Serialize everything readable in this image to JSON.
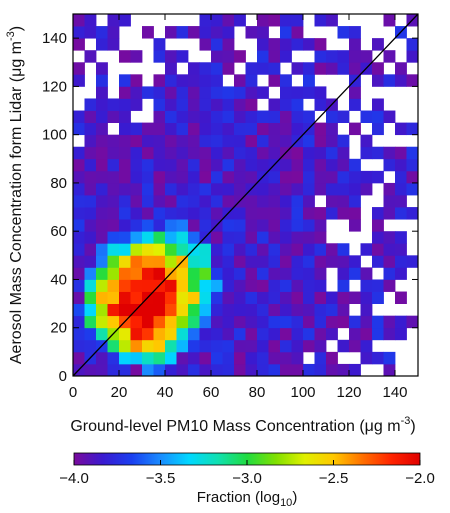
{
  "chart_data": {
    "type": "heatmap",
    "title": "",
    "xlabel": "Ground-level PM10 Mass Concentration (μg m⁻³)",
    "ylabel": "Aerosol Mass Concentration form Lidar (μg m⁻³)",
    "xlabel_parts": {
      "main": "Ground-level PM10 Mass Concentration (μg m",
      "sup": "-3",
      "tail": ")"
    },
    "ylabel_parts": {
      "main": "Aerosol Mass Concentration form Lidar (μg m",
      "sup": "-3",
      "tail": ")"
    },
    "xlim": [
      0,
      150
    ],
    "ylim": [
      0,
      150
    ],
    "xticks": [
      "0",
      "20",
      "40",
      "60",
      "80",
      "100",
      "120",
      "140"
    ],
    "yticks": [
      "0",
      "20",
      "40",
      "60",
      "80",
      "100",
      "120",
      "140"
    ],
    "bin_size": 5,
    "grid": false,
    "reference_line": "1:1",
    "colorbar": {
      "label": "Fraction (log₁₀)",
      "label_parts": {
        "main": "Fraction (log",
        "sub": "10",
        "tail": ")"
      },
      "range": [
        -4.0,
        -2.0
      ],
      "ticks": [
        "−4.0",
        "−3.5",
        "−3.0",
        "−2.5",
        "−2.0"
      ],
      "colormap": "rainbow",
      "colors": [
        "#7a0a9c",
        "#3a1ad0",
        "#1a3ff0",
        "#1a8cff",
        "#00d8ff",
        "#10e0b0",
        "#20dc40",
        "#80e000",
        "#e0f000",
        "#ffc800",
        "#ff7000",
        "#ff2400",
        "#e00000"
      ]
    },
    "description": "2-D histogram of lidar-derived aerosol mass concentration versus ground-level PM10; fraction of samples in each 5x5 bin on a log10 color scale; peak density near (30, 25)"
  }
}
